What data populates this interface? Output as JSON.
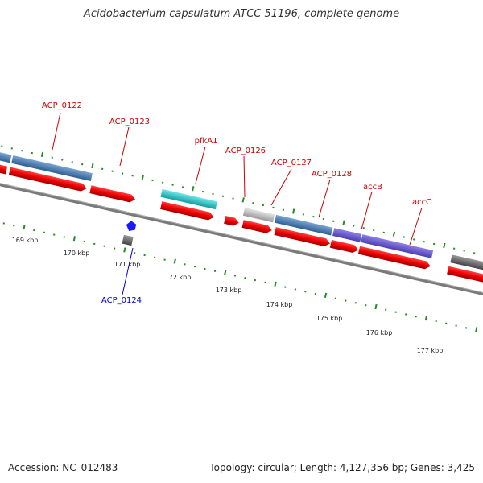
{
  "title": "Acidobacterium capsulatum ATCC 51196, complete genome",
  "footer": {
    "accession": "Accession: NC_012483",
    "summary": "Topology: circular; Length: 4,127,356 bp; Genes: 3,425"
  },
  "scale_labels": [
    "169 kbp",
    "170 kbp",
    "171 kbp",
    "172 kbp",
    "173 kbp",
    "174 kbp",
    "175 kbp",
    "176 kbp",
    "177 kbp"
  ],
  "gene_labels": {
    "acp0122": "ACP_0122",
    "acp0123": "ACP_0123",
    "pfkA1": "pfkA1",
    "acp0126": "ACP_0126",
    "acp0127": "ACP_0127",
    "acp0128": "ACP_0128",
    "accB": "accB",
    "accC": "accC",
    "acp0124": "ACP_0124"
  },
  "colors": {
    "label_red": "#cc0000",
    "label_blue": "#0000cc",
    "cds_red": "#ee0000",
    "gene_steelblue": "#4f7fb3",
    "gene_cyan": "#20c8c8",
    "gene_purple": "#6a5acd",
    "gene_gray": "#bbbbbb",
    "backbone": "#808080",
    "tick_green": "#228b22"
  }
}
